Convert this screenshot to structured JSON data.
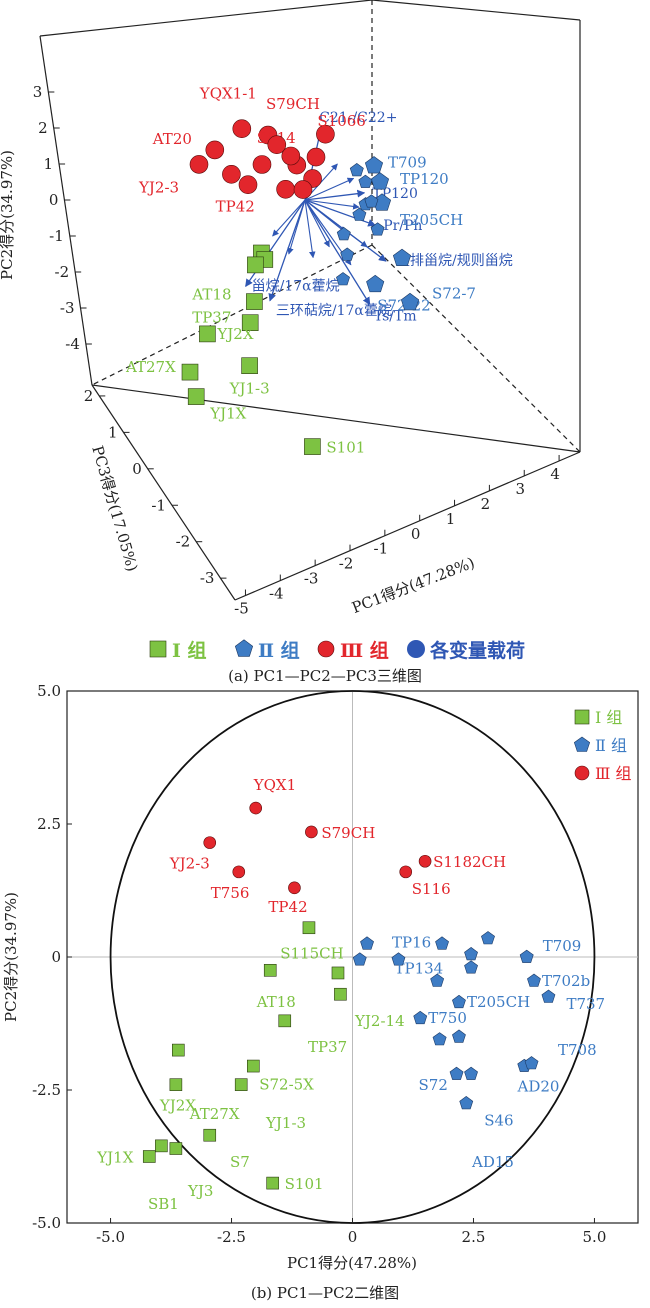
{
  "figure": {
    "caption_a": "(a) PC1—PC2—PC3三维图",
    "caption_b": "(b) PC1—PC2二维图"
  },
  "colors": {
    "group1": "#7dc242",
    "group2": "#3e7cc4",
    "group3": "#e2262c",
    "loading": "#2f57b4",
    "axis": "#222222"
  },
  "chart_data": [
    {
      "type": "scatter",
      "projection": "3d",
      "xlabel": "PC1得分(47.28%)",
      "ylabel": "PC2得分(34.97%)",
      "zlabel": "PC3得分(17.05%)",
      "x_ticks": [
        "-5",
        "-4",
        "-3",
        "-2",
        "-1",
        "0",
        "1",
        "2",
        "3",
        "4"
      ],
      "y_ticks": [
        "-4",
        "-3",
        "-2",
        "-1",
        "0",
        "1",
        "2",
        "3"
      ],
      "z_ticks": [
        "2",
        "1",
        "0",
        "-1",
        "-2",
        "-3"
      ],
      "legend": [
        {
          "marker": "square",
          "label": "Ⅰ 组"
        },
        {
          "marker": "pentagon",
          "label": "Ⅱ 组"
        },
        {
          "marker": "circle",
          "label": "Ⅲ 组"
        },
        {
          "marker": "dot",
          "label": "各变量载荷"
        }
      ],
      "legend_position": "bottom",
      "series": [
        {
          "name": "Ⅰ 组",
          "marker": "square",
          "points": [
            {
              "label": "AT18",
              "x": -2.0,
              "y": -2.0,
              "z": 0.2
            },
            {
              "label": "TP37",
              "x": -2.3,
              "y": -2.4,
              "z": 0.0
            },
            {
              "label": "YJ2X",
              "x": -3.6,
              "y": -2.7,
              "z": 0.5
            },
            {
              "label": "AT27X",
              "x": -4.2,
              "y": -3.7,
              "z": 0.6
            },
            {
              "label": "YJ1-3",
              "x": -2.6,
              "y": -3.3,
              "z": -0.4
            },
            {
              "label": "YJ1X",
              "x": -4.1,
              "y": -4.3,
              "z": 0.4
            },
            {
              "label": "S101",
              "x": -1.5,
              "y": -4.7,
              "z": -2.3
            },
            {
              "label": "",
              "x": -1.8,
              "y": -0.6,
              "z": 0.1
            },
            {
              "label": "",
              "x": -1.6,
              "y": -0.9,
              "z": 0.2
            },
            {
              "label": "",
              "x": -2.1,
              "y": -0.8,
              "z": 0.0
            }
          ]
        },
        {
          "name": "Ⅱ 组",
          "marker": "pentagon",
          "points": [
            {
              "label": "T709",
              "x": 2.6,
              "y": 0.7,
              "z": 0.2
            },
            {
              "label": "TP120",
              "x": 2.9,
              "y": 0.1,
              "z": 0.3
            },
            {
              "label": "T205CH",
              "x": 2.7,
              "y": -0.2,
              "z": -0.1
            },
            {
              "label": "S72-22",
              "x": 2.3,
              "y": -2.3,
              "z": -0.3
            },
            {
              "label": "S72-7",
              "x": 3.5,
              "y": -3.0,
              "z": -0.5
            },
            {
              "label": "",
              "x": 3.4,
              "y": -1.9,
              "z": -0.2
            }
          ]
        },
        {
          "name": "Ⅲ 组",
          "marker": "circle",
          "points": [
            {
              "label": "YQX1-1",
              "x": -2.0,
              "y": 2.5,
              "z": 0.9
            },
            {
              "label": "S79CH",
              "x": -1.2,
              "y": 2.3,
              "z": 0.6
            },
            {
              "label": "AT20",
              "x": -2.9,
              "y": 2.0,
              "z": 1.1
            },
            {
              "label": "S1066",
              "x": 0.8,
              "y": 2.0,
              "z": 0.3
            },
            {
              "label": "S114",
              "x": -0.3,
              "y": 1.4,
              "z": 0.3
            },
            {
              "label": "YJ2-3",
              "x": -3.3,
              "y": 1.5,
              "z": 1.4
            },
            {
              "label": "TP42",
              "x": -0.8,
              "y": 0.9,
              "z": 0.2
            },
            {
              "label": "",
              "x": -1.5,
              "y": 1.6,
              "z": 0.5
            }
          ]
        }
      ],
      "loadings": [
        {
          "label": "C21-/C22+",
          "x": 0.6,
          "y": 2.0
        },
        {
          "label": "TP120",
          "x": 2.2,
          "y": 0.2
        },
        {
          "label": "Pr/Ph",
          "x": 2.6,
          "y": -0.7
        },
        {
          "label": "重排甾烷/规则甾烷",
          "x": 3.0,
          "y": -1.7
        },
        {
          "label": "甾烷/17α藿烷",
          "x": -2.2,
          "y": -2.4
        },
        {
          "label": "三环萜烷/17α藿烷",
          "x": -1.3,
          "y": -2.8
        },
        {
          "label": "Ts/Tm",
          "x": 2.4,
          "y": -2.9
        }
      ]
    },
    {
      "type": "scatter",
      "xlabel": "PC1得分(47.28%)",
      "ylabel": "PC2得分(34.97%)",
      "xlim": [
        -5.9,
        5.9
      ],
      "ylim": [
        -5.0,
        5.0
      ],
      "x_ticks": [
        "-5.0",
        "-2.5",
        "0",
        "2.5",
        "5.0"
      ],
      "y_ticks": [
        "5.0",
        "2.5",
        "0",
        "-2.5",
        "-5.0"
      ],
      "legend": [
        {
          "marker": "square",
          "label": "Ⅰ 组"
        },
        {
          "marker": "pentagon",
          "label": "Ⅱ 组"
        },
        {
          "marker": "circle",
          "label": "Ⅲ 组"
        }
      ],
      "legend_position": "top-right",
      "series": [
        {
          "name": "Ⅰ 组",
          "marker": "square",
          "points": [
            {
              "label": "S115CH",
              "x": -1.7,
              "y": -0.25
            },
            {
              "label": "",
              "x": -0.9,
              "y": 0.55
            },
            {
              "label": "",
              "x": -0.3,
              "y": -0.3
            },
            {
              "label": "",
              "x": -0.25,
              "y": -0.7
            },
            {
              "label": "AT18",
              "x": -1.4,
              "y": -1.2
            },
            {
              "label": "",
              "x": -3.6,
              "y": -1.75
            },
            {
              "label": "YJ2X",
              "x": -3.65,
              "y": -2.4
            },
            {
              "label": "",
              "x": -2.05,
              "y": -2.05
            },
            {
              "label": "S72-5X",
              "x": -2.3,
              "y": -2.4
            },
            {
              "label": "AT27X",
              "x": -2.95,
              "y": -3.35
            },
            {
              "label": "",
              "x": -3.95,
              "y": -3.55
            },
            {
              "label": "",
              "x": -3.65,
              "y": -3.6
            },
            {
              "label": "YJ1X",
              "x": -4.2,
              "y": -3.75
            },
            {
              "label": "S101",
              "x": -1.65,
              "y": -4.25
            }
          ]
        },
        {
          "name": "Ⅱ 组",
          "marker": "pentagon",
          "points": [
            {
              "label": "TP16",
              "x": 1.85,
              "y": 0.25
            },
            {
              "label": "",
              "x": 0.3,
              "y": 0.25
            },
            {
              "label": "",
              "x": 0.15,
              "y": -0.05
            },
            {
              "label": "TP134",
              "x": 0.95,
              "y": -0.05
            },
            {
              "label": "",
              "x": 2.45,
              "y": 0.05
            },
            {
              "label": "",
              "x": 2.45,
              "y": -0.2
            },
            {
              "label": "",
              "x": 2.8,
              "y": 0.35
            },
            {
              "label": "T709",
              "x": 3.6,
              "y": 0.0
            },
            {
              "label": "",
              "x": 1.75,
              "y": -0.45
            },
            {
              "label": "T702b",
              "x": 3.75,
              "y": -0.45
            },
            {
              "label": "T737",
              "x": 4.05,
              "y": -0.75
            },
            {
              "label": "T205CH",
              "x": 2.2,
              "y": -0.85
            },
            {
              "label": "T750",
              "x": 1.4,
              "y": -1.15
            },
            {
              "label": "",
              "x": 1.8,
              "y": -1.55
            },
            {
              "label": "",
              "x": 2.2,
              "y": -1.5
            },
            {
              "label": "S72",
              "x": 2.15,
              "y": -2.2
            },
            {
              "label": "",
              "x": 2.45,
              "y": -2.2
            },
            {
              "label": "",
              "x": 3.55,
              "y": -2.05
            },
            {
              "label": "AD20",
              "x": 3.7,
              "y": -2.0
            },
            {
              "label": "S46",
              "x": 2.35,
              "y": -2.75
            }
          ]
        },
        {
          "name": "Ⅲ 组",
          "marker": "circle",
          "points": [
            {
              "label": "YQX1",
              "x": -2.0,
              "y": 2.8
            },
            {
              "label": "S79CH",
              "x": -0.85,
              "y": 2.35
            },
            {
              "label": "YJ2-3",
              "x": -2.95,
              "y": 2.15
            },
            {
              "label": "T756",
              "x": -2.35,
              "y": 1.6
            },
            {
              "label": "TP42",
              "x": -1.2,
              "y": 1.3
            },
            {
              "label": "S1182CH",
              "x": 1.5,
              "y": 1.8
            },
            {
              "label": "S116",
              "x": 1.1,
              "y": 1.6
            }
          ]
        }
      ],
      "extra_labels": [
        "YJ2-14",
        "TP37",
        "YJ1-3",
        "S7",
        "YJ3",
        "SB1",
        "T708",
        "AD15"
      ],
      "reference_circle_radius": 5.0,
      "grid": false
    }
  ]
}
